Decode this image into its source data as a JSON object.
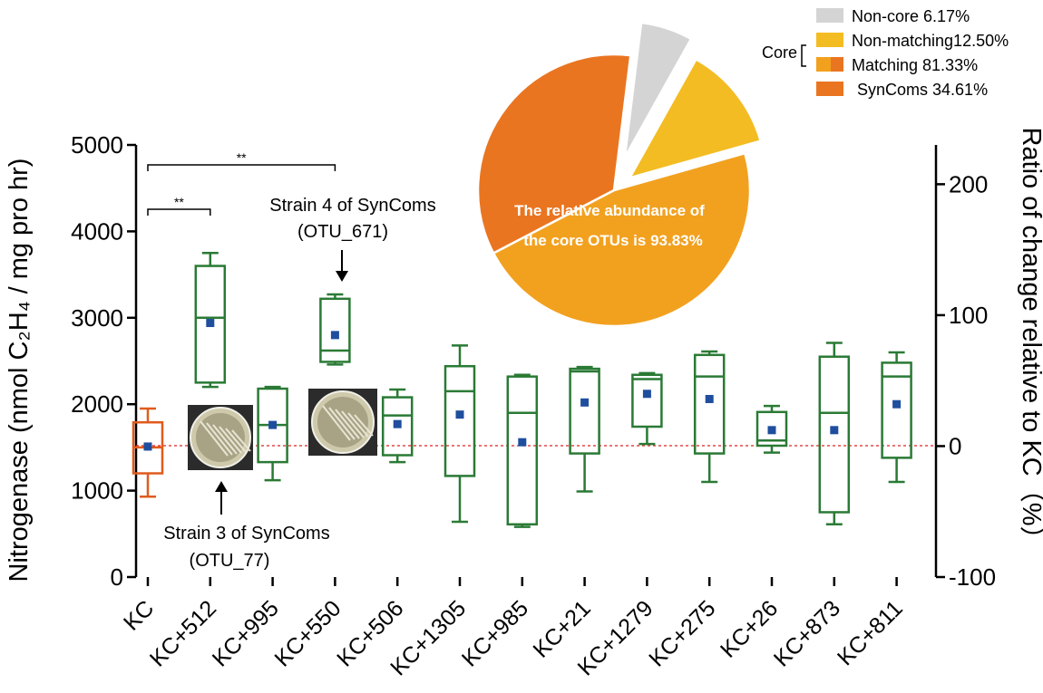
{
  "chart_data": {
    "type": "box",
    "ylabel": "Nitrogenase (nmol C₂H₄ / mg pro hr)",
    "y2label": "Ratio of change relative to KC（%）",
    "ylim": [
      0,
      5000
    ],
    "y2lim": [
      -100,
      230
    ],
    "yticks": [
      "0",
      "1000",
      "2000",
      "3000",
      "4000",
      "5000"
    ],
    "y2ticks": [
      "-100",
      "0",
      "100",
      "200"
    ],
    "reference_line": 1520,
    "categories": [
      "KC",
      "KC+512",
      "KC+995",
      "KC+550",
      "KC+506",
      "KC+1305",
      "KC+985",
      "KC+21",
      "KC+1279",
      "KC+275",
      "KC+26",
      "KC+873",
      "KC+811"
    ],
    "boxes": [
      {
        "min": 930,
        "q1": 1200,
        "median": 1500,
        "q3": 1790,
        "max": 1950,
        "mean": 1510,
        "color": "#e05b1c"
      },
      {
        "min": 2200,
        "q1": 2250,
        "median": 3000,
        "q3": 3600,
        "max": 3750,
        "mean": 2940,
        "color": "#2a7a35"
      },
      {
        "min": 1120,
        "q1": 1330,
        "median": 1760,
        "q3": 2180,
        "max": 2200,
        "mean": 1760,
        "color": "#2a7a35"
      },
      {
        "min": 2460,
        "q1": 2490,
        "median": 2620,
        "q3": 3220,
        "max": 3270,
        "mean": 2800,
        "color": "#2a7a35"
      },
      {
        "min": 1330,
        "q1": 1410,
        "median": 1870,
        "q3": 2080,
        "max": 2170,
        "mean": 1770,
        "color": "#2a7a35"
      },
      {
        "min": 640,
        "q1": 1170,
        "median": 2150,
        "q3": 2440,
        "max": 2680,
        "mean": 1880,
        "color": "#2a7a35"
      },
      {
        "min": 580,
        "q1": 610,
        "median": 1900,
        "q3": 2320,
        "max": 2340,
        "mean": 1560,
        "color": "#2a7a35"
      },
      {
        "min": 990,
        "q1": 1430,
        "median": 2380,
        "q3": 2410,
        "max": 2430,
        "mean": 2020,
        "color": "#2a7a35"
      },
      {
        "min": 1540,
        "q1": 1740,
        "median": 2290,
        "q3": 2340,
        "max": 2360,
        "mean": 2120,
        "color": "#2a7a35"
      },
      {
        "min": 1100,
        "q1": 1430,
        "median": 2320,
        "q3": 2570,
        "max": 2610,
        "mean": 2060,
        "color": "#2a7a35"
      },
      {
        "min": 1440,
        "q1": 1520,
        "median": 1580,
        "q3": 1910,
        "max": 1980,
        "mean": 1700,
        "color": "#2a7a35"
      },
      {
        "min": 610,
        "q1": 750,
        "median": 1900,
        "q3": 2550,
        "max": 2710,
        "mean": 1700,
        "color": "#2a7a35"
      },
      {
        "min": 1100,
        "q1": 1380,
        "median": 2320,
        "q3": 2480,
        "max": 2600,
        "mean": 2000,
        "color": "#2a7a35"
      }
    ],
    "mean_marker_color": "#1f4e9e",
    "significance": [
      {
        "from": 0,
        "to": 1,
        "label": "**"
      },
      {
        "from": 0,
        "to": 3,
        "label": "**"
      }
    ],
    "annotations": {
      "strain4_line1": "Strain 4 of SynComs",
      "strain4_line2": "(OTU_671)",
      "strain3_line1": "Strain 3 of SynComs",
      "strain3_line2": "(OTU_77)"
    },
    "pie": {
      "slices": [
        {
          "name": "Non-core",
          "percent": 6.17,
          "color": "#d3d4d3"
        },
        {
          "name": "Non-matching",
          "percent": 12.5,
          "color": "#f3bc22"
        },
        {
          "name": "Matching",
          "percent": 81.33,
          "color": "#f2a11f"
        },
        {
          "name": "SynComs",
          "percent": 34.61,
          "color": "#ea7520"
        }
      ],
      "center_text_line1": "The relative abundance of",
      "center_text_line2": "the core OTUs is 93.83%"
    },
    "legend": {
      "items": [
        {
          "label": "Non-core 6.17%",
          "color": "#d3d4d3"
        },
        {
          "label": "Non-matching12.50%",
          "color": "#f3bc22"
        },
        {
          "label": "Matching 81.33%",
          "color": "#f2a11f",
          "color2": "#ea7520"
        },
        {
          "label": "SynComs 34.61%",
          "color": "#ea7520"
        }
      ],
      "group_label": "Core"
    }
  }
}
